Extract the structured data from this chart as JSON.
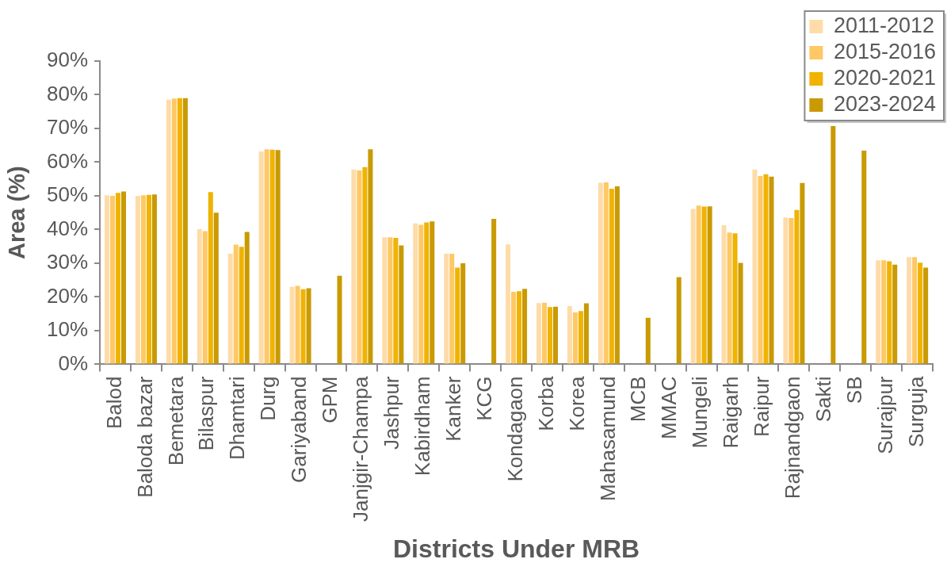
{
  "chart_data": {
    "type": "bar",
    "xlabel": "Districts Under MRB",
    "ylabel": "Area (%)",
    "categories": [
      "Balod",
      "Baloda bazar",
      "Bemetara",
      "Bilaspur",
      "Dhamtari",
      "Durg",
      "Gariyaband",
      "GPM",
      "Janjgir-Champa",
      "Jashpur",
      "Kabirdham",
      "Kanker",
      "KCG",
      "Kondagaon",
      "Korba",
      "Korea",
      "Mahasamund",
      "MCB",
      "MMAC",
      "Mungeli",
      "Raigarh",
      "Raipur",
      "Rajnandgaon",
      "Sakti",
      "SB",
      "Surajpur",
      "Surguja"
    ],
    "series": [
      {
        "name": "2011-2012",
        "color": "#fddcaa",
        "values": [
          50.2,
          50.0,
          78.5,
          40.1,
          32.8,
          63.2,
          23.0,
          null,
          57.8,
          37.7,
          41.8,
          32.8,
          null,
          35.6,
          18.2,
          17.3,
          53.9,
          null,
          null,
          46.1,
          41.3,
          57.8,
          43.6,
          null,
          null,
          30.9,
          31.8
        ]
      },
      {
        "name": "2015-2016",
        "color": "#fec865",
        "values": [
          50.0,
          50.2,
          78.9,
          39.5,
          35.5,
          63.8,
          23.3,
          null,
          57.5,
          37.7,
          41.4,
          32.8,
          null,
          21.5,
          18.3,
          15.4,
          54.0,
          null,
          null,
          47.1,
          39.1,
          55.9,
          43.4,
          null,
          null,
          30.9,
          31.8
        ]
      },
      {
        "name": "2020-2021",
        "color": "#efb300",
        "values": [
          50.9,
          50.3,
          79.0,
          51.1,
          34.9,
          63.7,
          22.3,
          null,
          58.5,
          37.5,
          42.1,
          28.7,
          null,
          21.7,
          17.0,
          15.8,
          52.1,
          null,
          null,
          46.8,
          38.9,
          56.4,
          45.8,
          null,
          null,
          30.6,
          30.2
        ]
      },
      {
        "name": "2023-2024",
        "color": "#c99a03",
        "values": [
          51.3,
          50.4,
          79.0,
          45.0,
          39.3,
          63.6,
          22.6,
          26.3,
          63.8,
          35.3,
          42.4,
          30.0,
          43.2,
          22.4,
          17.1,
          18.1,
          52.8,
          13.8,
          25.9,
          46.9,
          30.1,
          55.7,
          53.8,
          70.7,
          63.4,
          29.6,
          28.7
        ]
      }
    ],
    "ylim": [
      0,
      90
    ],
    "yticks": [
      {
        "value": 0,
        "label": "0%"
      },
      {
        "value": 10,
        "label": "10%"
      },
      {
        "value": 20,
        "label": "20%"
      },
      {
        "value": 30,
        "label": "30%"
      },
      {
        "value": 40,
        "label": "40%"
      },
      {
        "value": 50,
        "label": "50%"
      },
      {
        "value": 60,
        "label": "60%"
      },
      {
        "value": 70,
        "label": "70%"
      },
      {
        "value": 80,
        "label": "80%"
      },
      {
        "value": 90,
        "label": "90%"
      }
    ],
    "legend": "top right"
  }
}
